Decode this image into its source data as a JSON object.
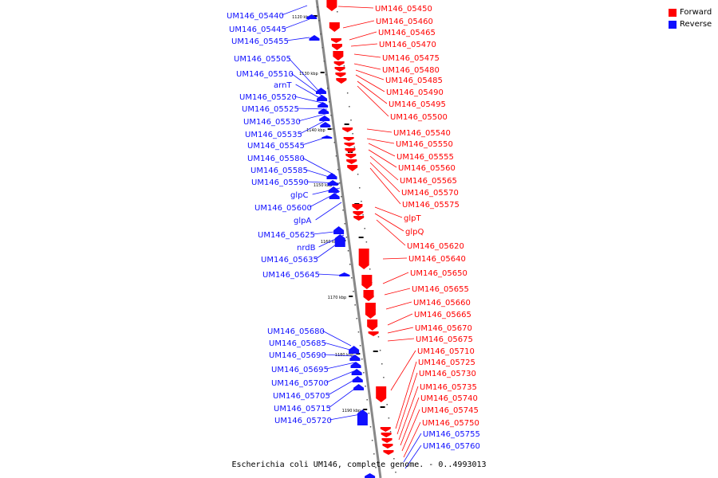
{
  "legend": {
    "forward_label": "Forward",
    "reverse_label": "Reverse",
    "forward_color": "#ff0000",
    "reverse_color": "#1010ff"
  },
  "caption": "Escherichia coli UM146, complete genome. - 0..4993013",
  "ticks": [
    "1120 kbp",
    "1130 kbp",
    "1140 kbp",
    "1150 kbp",
    "1160 kbp",
    "1170 kbp",
    "1180 kbp",
    "1190 kbp"
  ],
  "left_labels": [
    "UM146_05440",
    "UM146_05445",
    "UM146_05455",
    "UM146_05505",
    "UM146_05510",
    "arnT",
    "UM146_05520",
    "UM146_05525",
    "UM146_05530",
    "UM146_05535",
    "UM146_05545",
    "UM146_05580",
    "UM146_05585",
    "UM146_05590",
    "glpC",
    "UM146_05600",
    "glpA",
    "UM146_05625",
    "nrdB",
    "UM146_05635",
    "UM146_05645",
    "UM146_05680",
    "UM146_05685",
    "UM146_05690",
    "UM146_05695",
    "UM146_05700",
    "UM146_05705",
    "UM146_05715",
    "UM146_05720"
  ],
  "right_labels": [
    "UM146_05450",
    "UM146_05460",
    "UM146_05465",
    "UM146_05470",
    "UM146_05475",
    "UM146_05480",
    "UM146_05485",
    "UM146_05490",
    "UM146_05495",
    "UM146_05500",
    "UM146_05540",
    "UM146_05550",
    "UM146_05555",
    "UM146_05560",
    "UM146_05565",
    "UM146_05570",
    "UM146_05575",
    "glpT",
    "glpQ",
    "UM146_05620",
    "UM146_05640",
    "UM146_05650",
    "UM146_05655",
    "UM146_05660",
    "UM146_05665",
    "UM146_05670",
    "UM146_05675",
    "UM146_05710",
    "UM146_05725",
    "UM146_05730",
    "UM146_05735",
    "UM146_05740",
    "UM146_05745",
    "UM146_05750"
  ],
  "right_blue_labels": [
    "UM146_05755",
    "UM146_05760"
  ],
  "colors": {
    "forward": "#ff0000",
    "reverse": "#1010ff",
    "backbone": "#888888"
  }
}
